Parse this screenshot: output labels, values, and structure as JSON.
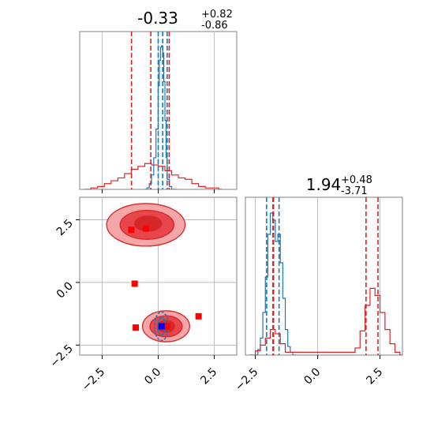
{
  "colors": {
    "posterior_a": "#1f77b4",
    "posterior_b": "#d62728",
    "fill_light": "#f4a6a8",
    "fill_mid": "#e8464b",
    "fill_dark": "#d62728",
    "square_marker": "#ff0000",
    "square_truth": "#0000ff",
    "grid": "#b0b0b0",
    "frame": "#808080"
  },
  "chart_data": [
    {
      "type": "histogram",
      "panel": "marginal-x",
      "title_value": "-0.33",
      "title_plus": "+0.82",
      "title_minus": "-0.86",
      "xlim": [
        -3.5,
        3.5
      ],
      "x_ticks": [
        -2.5,
        0.0,
        2.5
      ],
      "grid": true,
      "series": [
        {
          "color": "blue",
          "bins": [
            -0.6,
            -0.5,
            -0.4,
            -0.3,
            -0.2,
            -0.1,
            0.0,
            0.05,
            0.1,
            0.15,
            0.2,
            0.25,
            0.3,
            0.35,
            0.4,
            0.5,
            0.6,
            0.7
          ],
          "values": [
            0.0,
            0.01,
            0.04,
            0.1,
            0.22,
            0.42,
            0.72,
            0.9,
            0.99,
            1.0,
            0.95,
            0.75,
            0.48,
            0.22,
            0.07,
            0.02,
            0.0,
            0.0
          ],
          "quantiles": [
            0.0,
            0.2,
            0.4
          ]
        },
        {
          "color": "red",
          "bins": [
            -3.3,
            -3.0,
            -2.7,
            -2.4,
            -2.1,
            -1.8,
            -1.5,
            -1.2,
            -0.9,
            -0.6,
            -0.3,
            0.0,
            0.3,
            0.6,
            0.9,
            1.2,
            1.5,
            1.8,
            2.1,
            2.4,
            2.7
          ],
          "values": [
            0.0,
            0.01,
            0.02,
            0.04,
            0.06,
            0.08,
            0.11,
            0.14,
            0.16,
            0.18,
            0.17,
            0.16,
            0.13,
            0.1,
            0.08,
            0.07,
            0.04,
            0.02,
            0.01,
            0.01,
            0.0
          ],
          "quantiles": [
            -1.19,
            -0.33,
            0.49
          ]
        }
      ]
    },
    {
      "type": "contour",
      "panel": "joint",
      "xlim": [
        -3.5,
        3.5
      ],
      "ylim": [
        -2.9,
        3.4
      ],
      "x_ticks": [
        -2.5,
        0.0,
        2.5
      ],
      "y_ticks": [
        -2.5,
        0.0,
        2.5
      ],
      "grid": true,
      "red_markers": [
        {
          "x": -1.2,
          "y": 2.1
        },
        {
          "x": -0.55,
          "y": 2.15
        },
        {
          "x": -1.05,
          "y": -0.05
        },
        {
          "x": -1.0,
          "y": -1.8
        },
        {
          "x": 1.8,
          "y": -1.35
        },
        {
          "x": 0.4,
          "y": -1.75
        }
      ],
      "blue_marker": {
        "x": 0.15,
        "y": -1.75
      }
    },
    {
      "type": "histogram",
      "panel": "marginal-y",
      "title_value": "1.94",
      "title_plus": "+0.48",
      "title_minus": "-3.71",
      "xlim": [
        -2.9,
        3.4
      ],
      "x_ticks": [
        -2.5,
        0.0,
        2.5
      ],
      "grid": true,
      "series": [
        {
          "color": "blue",
          "bins": [
            -2.5,
            -2.4,
            -2.3,
            -2.2,
            -2.1,
            -2.0,
            -1.9,
            -1.8,
            -1.7,
            -1.6,
            -1.5,
            -1.4,
            -1.3,
            -1.2,
            -1.1,
            -1.0
          ],
          "values": [
            0.0,
            0.04,
            0.12,
            0.3,
            0.55,
            0.85,
            1.0,
            0.95,
            0.8,
            0.85,
            0.65,
            0.4,
            0.18,
            0.06,
            0.02,
            0.0
          ],
          "quantiles": [
            -2.05,
            -1.8,
            -1.55
          ]
        },
        {
          "color": "red",
          "bins": [
            -2.7,
            -2.5,
            -2.3,
            -2.1,
            -1.9,
            -1.7,
            -1.5,
            -1.3,
            1.5,
            1.7,
            1.9,
            2.1,
            2.3,
            2.5,
            2.7,
            2.9,
            3.1,
            3.3
          ],
          "values": [
            0.0,
            0.03,
            0.07,
            0.12,
            0.18,
            0.15,
            0.08,
            0.02,
            0.05,
            0.17,
            0.35,
            0.47,
            0.42,
            0.3,
            0.18,
            0.08,
            0.02,
            0.0
          ],
          "quantiles": [
            -1.77,
            1.94,
            2.42
          ]
        }
      ]
    }
  ]
}
